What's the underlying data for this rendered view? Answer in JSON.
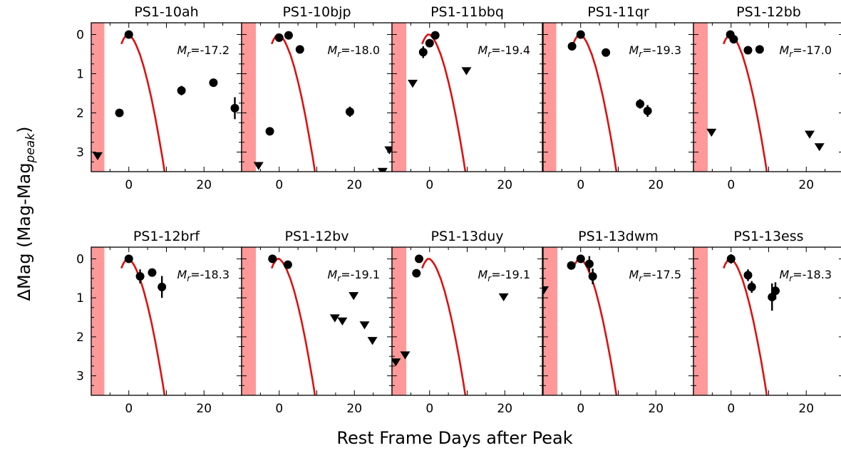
{
  "chart_data": {
    "type": "scatter",
    "ylabel": "ΔMag (Mag-Mag",
    "ylabel_sub": "peak",
    "xlabel": "Rest Frame Days after Peak",
    "xlim": [
      -10,
      30
    ],
    "ylim": [
      3.5,
      -0.3
    ],
    "xticks": [
      0,
      20
    ],
    "yticks": [
      0,
      1,
      2,
      3
    ],
    "shade_color": "#ff9999",
    "model_color": "#dd1111",
    "marker_color": "#000000",
    "model_curve": [
      [
        -2,
        0.24
      ],
      [
        -1.5,
        0.13
      ],
      [
        -1,
        0.05
      ],
      [
        -0.5,
        0.0
      ],
      [
        0,
        0.0
      ],
      [
        0.5,
        0.04
      ],
      [
        1,
        0.1
      ],
      [
        1.5,
        0.18
      ],
      [
        2,
        0.28
      ],
      [
        3,
        0.52
      ],
      [
        4,
        0.83
      ],
      [
        5,
        1.2
      ],
      [
        6,
        1.62
      ],
      [
        7,
        2.1
      ],
      [
        8,
        2.62
      ],
      [
        9,
        3.18
      ],
      [
        9.5,
        3.5
      ]
    ],
    "panels": [
      {
        "name": "PS1-10ah",
        "mag": "-17.2",
        "shade": [
          -10,
          -6.5
        ],
        "points": [
          [
            0,
            0.0,
            0
          ],
          [
            -2.5,
            2.0,
            0
          ],
          [
            14,
            1.43,
            0.12
          ],
          [
            22.5,
            1.23,
            0.05
          ],
          [
            28.2,
            1.88,
            0.28
          ]
        ],
        "limits": [
          [
            -8.3,
            3.1
          ]
        ]
      },
      {
        "name": "PS1-10bjp",
        "mag": "-18.0",
        "shade": [
          -10,
          -6.2
        ],
        "points": [
          [
            0,
            0.08,
            0
          ],
          [
            2.5,
            0.02,
            0
          ],
          [
            5.5,
            0.38,
            0
          ],
          [
            -2.5,
            2.47,
            0
          ],
          [
            18.8,
            1.97,
            0.13
          ]
        ],
        "limits": [
          [
            -5.5,
            3.35
          ],
          [
            27.5,
            3.5
          ],
          [
            29.3,
            2.95
          ]
        ]
      },
      {
        "name": "PS1-11bbq",
        "mag": "-19.4",
        "shade": [
          -10,
          -6.2
        ],
        "points": [
          [
            1.5,
            0.02,
            0
          ],
          [
            0,
            0.22,
            0
          ],
          [
            -1.7,
            0.45,
            0.15
          ]
        ],
        "limits": [
          [
            -4.5,
            1.25
          ],
          [
            9.8,
            0.93
          ]
        ]
      },
      {
        "name": "PS1-11qr",
        "mag": "-19.3",
        "shade": [
          -10,
          -6.5
        ],
        "points": [
          [
            0,
            0.0,
            0
          ],
          [
            -2.3,
            0.3,
            0
          ],
          [
            6.7,
            0.46,
            0
          ],
          [
            15.8,
            1.77,
            0.12
          ],
          [
            17.8,
            1.95,
            0.15
          ]
        ],
        "limits": []
      },
      {
        "name": "PS1-12bb",
        "mag": "-17.0",
        "shade": [
          -10,
          -6.2
        ],
        "points": [
          [
            -0.2,
            0.0,
            0
          ],
          [
            0.7,
            0.12,
            0
          ],
          [
            4.5,
            0.4,
            0
          ],
          [
            7.6,
            0.38,
            0
          ]
        ],
        "limits": [
          [
            -5.2,
            2.5
          ],
          [
            20.9,
            2.55
          ],
          [
            23.5,
            2.87
          ]
        ]
      },
      {
        "name": "PS1-12brf",
        "mag": "-18.3",
        "shade": [
          -10,
          -6.5
        ],
        "points": [
          [
            0,
            0.0,
            0
          ],
          [
            3,
            0.45,
            0.18
          ],
          [
            6.2,
            0.35,
            0
          ],
          [
            8.8,
            0.72,
            0.28
          ]
        ],
        "limits": []
      },
      {
        "name": "PS1-12bv",
        "mag": "-19.1",
        "shade": [
          -10,
          -6.2
        ],
        "points": [
          [
            -1.8,
            0.0,
            0
          ],
          [
            2.3,
            0.15,
            0
          ]
        ],
        "limits": [
          [
            14.8,
            1.52
          ],
          [
            16.8,
            1.6
          ],
          [
            19.8,
            0.95
          ],
          [
            22.7,
            1.7
          ],
          [
            24.8,
            2.1
          ]
        ]
      },
      {
        "name": "PS1-13duy",
        "mag": "-19.1",
        "shade": [
          -10,
          -6.2
        ],
        "points": [
          [
            -2.8,
            0.0,
            0
          ],
          [
            -3.5,
            0.37,
            0
          ]
        ],
        "limits": [
          [
            -9.0,
            2.65
          ],
          [
            -6.5,
            2.47
          ],
          [
            19.7,
            0.98
          ]
        ]
      },
      {
        "name": "PS1-13dwm",
        "mag": "-17.5",
        "shade": [
          -10,
          -6.2
        ],
        "points": [
          [
            0,
            0.0,
            0
          ],
          [
            -2.5,
            0.17,
            0
          ],
          [
            2.3,
            0.13,
            0.2
          ],
          [
            3.2,
            0.45,
            0.2
          ]
        ],
        "limits": [
          [
            -9.8,
            0.8
          ]
        ]
      },
      {
        "name": "PS1-13ess",
        "mag": "-18.3",
        "shade": [
          -10,
          -6.2
        ],
        "points": [
          [
            0,
            0.0,
            0.12
          ],
          [
            4.5,
            0.42,
            0.15
          ],
          [
            5.5,
            0.72,
            0.15
          ],
          [
            10.9,
            0.98,
            0.35
          ],
          [
            11.8,
            0.82,
            0.22
          ]
        ],
        "limits": []
      }
    ]
  }
}
